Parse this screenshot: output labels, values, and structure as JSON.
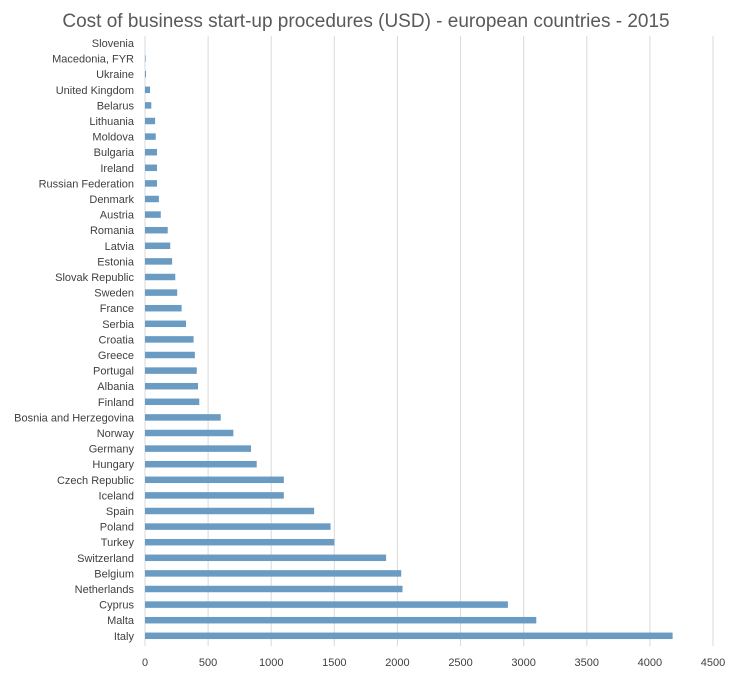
{
  "chart_data": {
    "type": "bar",
    "orientation": "horizontal",
    "title": "Cost of business start-up procedures (USD) - european countries - 2015",
    "xlabel": "",
    "ylabel": "",
    "xlim": [
      0,
      4500
    ],
    "x_ticks": [
      0,
      500,
      1000,
      1500,
      2000,
      2500,
      3000,
      3500,
      4000,
      4500
    ],
    "grid": true,
    "legend": "none",
    "bar_color": "#6a9bc3",
    "categories": [
      "Slovenia",
      "Macedonia, FYR",
      "Ukraine",
      "United Kingdom",
      "Belarus",
      "Lithuania",
      "Moldova",
      "Bulgaria",
      "Ireland",
      "Russian Federation",
      "Denmark",
      "Austria",
      "Romania",
      "Latvia",
      "Estonia",
      "Slovak Republic",
      "Sweden",
      "France",
      "Serbia",
      "Croatia",
      "Greece",
      "Portugal",
      "Albania",
      "Finland",
      "Bosnia and Herzegovina",
      "Norway",
      "Germany",
      "Hungary",
      "Czech Republic",
      "Iceland",
      "Spain",
      "Poland",
      "Turkey",
      "Switzerland",
      "Belgium",
      "Netherlands",
      "Cyprus",
      "Malta",
      "Italy"
    ],
    "values": [
      0,
      5,
      8,
      40,
      50,
      80,
      85,
      95,
      95,
      95,
      110,
      125,
      180,
      200,
      215,
      240,
      255,
      290,
      325,
      385,
      395,
      410,
      420,
      430,
      600,
      700,
      840,
      885,
      1100,
      1100,
      1340,
      1470,
      1500,
      1910,
      2030,
      2040,
      2875,
      3100,
      4180
    ]
  }
}
